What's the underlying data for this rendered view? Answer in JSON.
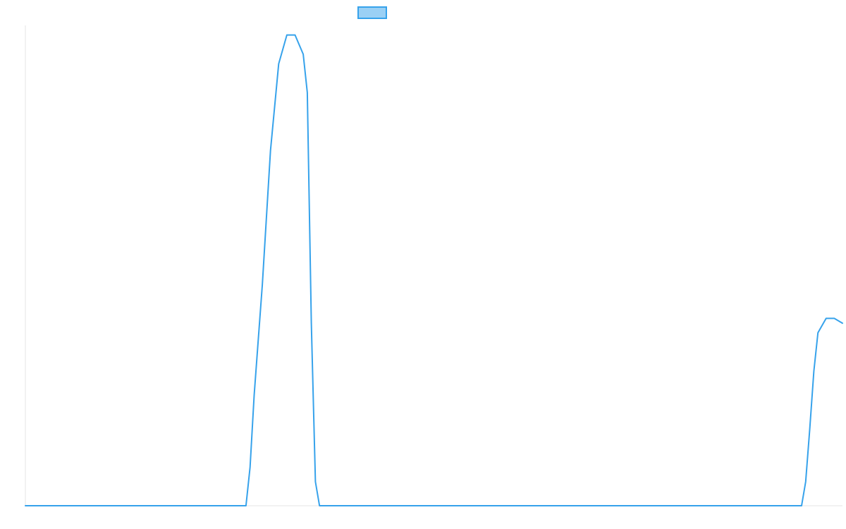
{
  "chart_data": {
    "type": "line",
    "title": "",
    "xlabel": "",
    "ylabel": "",
    "legend": {
      "position": "top",
      "entries": [
        {
          "name": "",
          "color": "#36a2eb",
          "fill": "#9ad0f5"
        }
      ]
    },
    "grid": false,
    "xlim": [
      0,
      100
    ],
    "ylim": [
      0,
      100
    ],
    "series": [
      {
        "name": "",
        "color": "#36a2eb",
        "x": [
          0,
          27,
          27.5,
          28,
          29,
          30,
          31,
          32,
          33,
          34,
          34.5,
          35,
          35.5,
          36,
          36.5,
          95,
          95.5,
          96,
          96.5,
          97,
          98,
          99,
          100
        ],
        "y": [
          0,
          0,
          8,
          23,
          46,
          74,
          92,
          98,
          98,
          94,
          86,
          38,
          5,
          0,
          0,
          0,
          5,
          16,
          28,
          36,
          39,
          39,
          38
        ]
      }
    ]
  },
  "colors": {
    "line": "#36a2eb",
    "legend_fill": "#9ad0f5",
    "axis": "#e5e5e5"
  }
}
